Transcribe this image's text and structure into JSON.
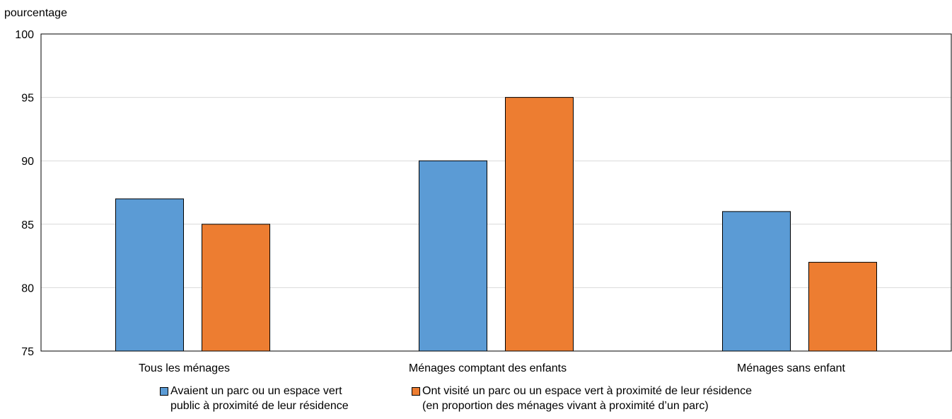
{
  "chart_data": {
    "type": "bar",
    "title": "",
    "ylabel": "pourcentage",
    "xlabel": "",
    "ylim": [
      75,
      100
    ],
    "yticks": [
      75,
      80,
      85,
      90,
      95,
      100
    ],
    "grid": true,
    "legend_position": "bottom",
    "categories": [
      "Tous les ménages",
      "Ménages comptant des enfants",
      "Ménages sans enfant"
    ],
    "series": [
      {
        "name": "Avaient un parc ou un espace vert\npublic à proximité de leur résidence",
        "color": "#5b9bd5",
        "values": [
          87,
          90,
          86
        ]
      },
      {
        "name": "Ont visité un parc ou un espace vert à proximité de leur résidence\n(en proportion des ménages vivant à proximité d’un parc)",
        "color": "#ed7d31",
        "values": [
          85,
          95,
          82
        ]
      }
    ]
  }
}
